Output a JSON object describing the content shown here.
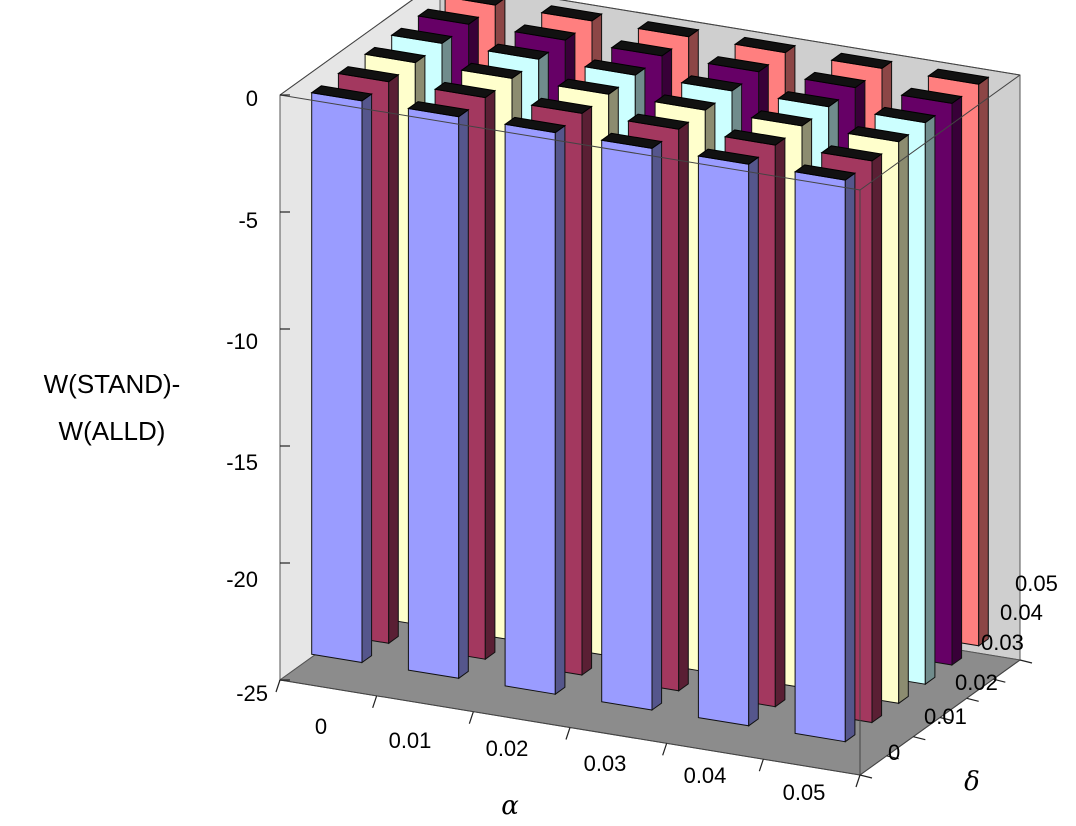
{
  "chart_data": {
    "type": "bar3d",
    "title": "",
    "zlabel_lines": [
      "W(STAND)-",
      "W(ALLD)"
    ],
    "xlabel": "α",
    "ylabel": "δ",
    "x_categories": [
      "0",
      "0.01",
      "0.02",
      "0.03",
      "0.04",
      "0.05"
    ],
    "y_categories": [
      "0",
      "0.01",
      "0.02",
      "0.03",
      "0.04",
      "0.05"
    ],
    "z_ticks": [
      "0",
      "-5",
      "-10",
      "-15",
      "-20",
      "-25"
    ],
    "zlim": [
      -25,
      0
    ],
    "row_colors": [
      "#9a9cff",
      "#a3385f",
      "#ffffcc",
      "#ccffff",
      "#660066",
      "#ff7f7f"
    ],
    "values": [
      [
        -24,
        -24,
        -24,
        -24,
        -24,
        -24
      ],
      [
        -24,
        -24,
        -24,
        -24,
        -24,
        -24
      ],
      [
        -24,
        -24,
        -24,
        -24,
        -24,
        -24
      ],
      [
        -24,
        -24,
        -24,
        -24,
        -24,
        -24
      ],
      [
        -24,
        -24,
        -24,
        -24,
        -24,
        -24
      ],
      [
        -24,
        -24,
        -24,
        -24,
        -24,
        -24
      ]
    ]
  }
}
